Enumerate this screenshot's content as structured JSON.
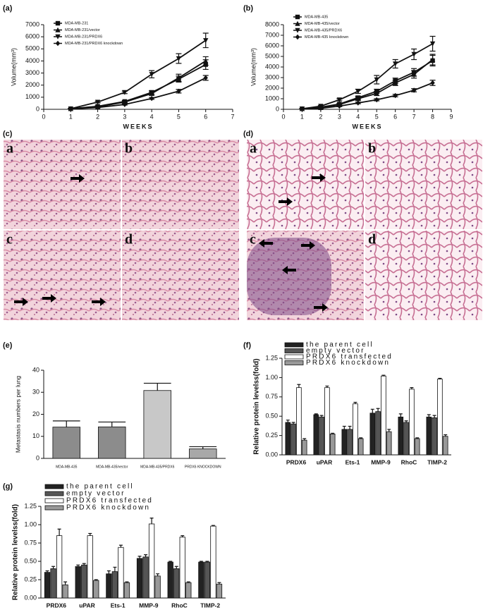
{
  "chart_data": [
    {
      "type": "line",
      "label": "(a)",
      "xlabel": "WEEKS",
      "ylabel": "Volume(mm³)",
      "x": [
        1,
        2,
        3,
        4,
        5,
        6
      ],
      "xlim": [
        0,
        7
      ],
      "xticks": [
        0,
        1,
        2,
        3,
        4,
        5,
        6,
        7
      ],
      "ylim": [
        0,
        7000
      ],
      "yticks": [
        0,
        1000,
        2000,
        3000,
        4000,
        5000,
        6000,
        7000
      ],
      "series": [
        {
          "name": "MDA-MB-231",
          "color": "#111111",
          "marker": "square",
          "values": [
            50,
            250,
            650,
            1400,
            2500,
            3700
          ],
          "errors": [
            20,
            50,
            80,
            150,
            250,
            400
          ]
        },
        {
          "name": "MDA-MB-231/vector",
          "color": "#111111",
          "marker": "triangle",
          "values": [
            50,
            200,
            600,
            1300,
            2600,
            4000
          ],
          "errors": [
            20,
            50,
            80,
            150,
            300,
            350
          ]
        },
        {
          "name": "MDA-MB-231/PRDX6",
          "color": "#111111",
          "marker": "down",
          "values": [
            50,
            600,
            1400,
            2900,
            4200,
            5700
          ],
          "errors": [
            20,
            60,
            100,
            300,
            400,
            600
          ]
        },
        {
          "name": "MDA-MB-231/PRDX6 knockdown",
          "color": "#111111",
          "marker": "diamond",
          "values": [
            30,
            150,
            400,
            900,
            1500,
            2600
          ],
          "errors": [
            10,
            30,
            50,
            80,
            150,
            200
          ]
        }
      ]
    },
    {
      "type": "line",
      "label": "(b)",
      "xlabel": "WEEKS",
      "ylabel": "Volume(mm³)",
      "x": [
        1,
        2,
        3,
        4,
        5,
        6,
        7,
        8
      ],
      "xlim": [
        0,
        9
      ],
      "xticks": [
        0,
        1,
        2,
        3,
        4,
        5,
        6,
        7,
        8,
        9
      ],
      "ylim": [
        0,
        8000
      ],
      "yticks": [
        0,
        1000,
        2000,
        3000,
        4000,
        5000,
        6000,
        7000,
        8000
      ],
      "series": [
        {
          "name": "MDA-MB-435",
          "color": "#111111",
          "marker": "square",
          "values": [
            50,
            200,
            500,
            1100,
            1700,
            2700,
            3500,
            4600
          ],
          "errors": [
            20,
            40,
            80,
            150,
            200,
            250,
            350,
            500
          ]
        },
        {
          "name": "MDA-MB-435/vector",
          "color": "#111111",
          "marker": "triangle",
          "values": [
            50,
            150,
            450,
            1000,
            1500,
            2500,
            3300,
            4700
          ],
          "errors": [
            20,
            40,
            80,
            150,
            200,
            250,
            350,
            500
          ]
        },
        {
          "name": "MDA-MB-435/PRDX6",
          "color": "#111111",
          "marker": "down",
          "values": [
            50,
            300,
            900,
            1700,
            2800,
            4300,
            5200,
            6200
          ],
          "errors": [
            20,
            60,
            100,
            200,
            400,
            400,
            500,
            700
          ]
        },
        {
          "name": "MDA-MB-435 knockdown",
          "color": "#111111",
          "marker": "diamond",
          "values": [
            30,
            100,
            300,
            600,
            900,
            1300,
            1800,
            2500
          ],
          "errors": [
            10,
            30,
            50,
            80,
            100,
            120,
            150,
            250
          ]
        }
      ]
    },
    {
      "type": "bar",
      "label": "(e)",
      "ylabel": "Metastasis numbers per lung",
      "categories": [
        "MDA-MB-435",
        "MDA-MB-435/vector",
        "MDA-MB-435/PRDX6",
        "PRDX6 KNOCKDOWN"
      ],
      "values": [
        14.2,
        14.3,
        30.8,
        4.3
      ],
      "errors": [
        2.8,
        2.2,
        3.3,
        1.0
      ],
      "colors": [
        "#8c8c8c",
        "#8c8c8c",
        "#c8c8c8",
        "#a8a8a8"
      ],
      "ylim": [
        0,
        40
      ],
      "yticks": [
        0,
        10,
        20,
        30,
        40
      ]
    },
    {
      "type": "bar",
      "label": "(f)",
      "ylabel": "Relative protein levelss(fold)",
      "categories": [
        "PRDX6",
        "uPAR",
        "Ets-1",
        "MMP-9",
        "RhoC",
        "TIMP-2"
      ],
      "ylim": [
        0,
        1.25
      ],
      "yticks": [
        {
          "value": 0,
          "label": "0.00"
        },
        {
          "value": 0.25,
          "label": "0.25"
        },
        {
          "value": 0.5,
          "label": "0.50"
        },
        {
          "value": 0.75,
          "label": "0.75"
        },
        {
          "value": 1,
          "label": "1.00"
        },
        {
          "value": 1.25,
          "label": "1.25"
        }
      ],
      "series": [
        {
          "name": "the parent cell",
          "color": "#222222",
          "values": [
            0.42,
            0.52,
            0.33,
            0.54,
            0.49,
            0.49
          ],
          "errors": [
            0.03,
            0.01,
            0.04,
            0.05,
            0.04,
            0.03
          ]
        },
        {
          "name": "empty vector",
          "color": "#555555",
          "values": [
            0.4,
            0.49,
            0.33,
            0.56,
            0.42,
            0.48
          ],
          "errors": [
            0.02,
            0.02,
            0.04,
            0.04,
            0.02,
            0.03
          ]
        },
        {
          "name": "PRDX6 transfected",
          "color": "#ffffff",
          "values": [
            0.87,
            0.87,
            0.66,
            1.02,
            0.85,
            0.98
          ],
          "errors": [
            0.04,
            0.02,
            0.02,
            0.01,
            0.02,
            0.01
          ]
        },
        {
          "name": "PRDX6 knockdown",
          "color": "#999999",
          "values": [
            0.19,
            0.27,
            0.21,
            0.3,
            0.21,
            0.24
          ],
          "errors": [
            0.02,
            0.01,
            0.01,
            0.03,
            0.01,
            0.02
          ]
        }
      ]
    },
    {
      "type": "bar",
      "label": "(g)",
      "ylabel": "Relative protein levelss(fold)",
      "categories": [
        "PRDX6",
        "uPAR",
        "Ets-1",
        "MMP-9",
        "RhoC",
        "TIMP-2"
      ],
      "ylim": [
        0,
        1.25
      ],
      "yticks": [
        {
          "value": 0,
          "label": "0.00"
        },
        {
          "value": 0.25,
          "label": "0.25"
        },
        {
          "value": 0.5,
          "label": "0.50"
        },
        {
          "value": 0.75,
          "label": "0.75"
        },
        {
          "value": 1,
          "label": "1.00"
        },
        {
          "value": 1.25,
          "label": "1.25"
        }
      ],
      "series": [
        {
          "name": "the parent cell",
          "color": "#222222",
          "values": [
            0.35,
            0.43,
            0.33,
            0.54,
            0.49,
            0.49
          ],
          "errors": [
            0.02,
            0.02,
            0.04,
            0.03,
            0.01,
            0.01
          ]
        },
        {
          "name": "empty vector",
          "color": "#555555",
          "values": [
            0.4,
            0.45,
            0.36,
            0.56,
            0.4,
            0.49
          ],
          "errors": [
            0.03,
            0.02,
            0.06,
            0.03,
            0.03,
            0.01
          ]
        },
        {
          "name": "PRDX6 transfected",
          "color": "#ffffff",
          "values": [
            0.85,
            0.85,
            0.69,
            1.01,
            0.83,
            0.98
          ],
          "errors": [
            0.09,
            0.03,
            0.03,
            0.08,
            0.02,
            0.01
          ]
        },
        {
          "name": "PRDX6 knockdown",
          "color": "#999999",
          "values": [
            0.18,
            0.24,
            0.21,
            0.3,
            0.21,
            0.19
          ],
          "errors": [
            0.04,
            0.01,
            0.01,
            0.03,
            0.01,
            0.02
          ]
        }
      ]
    }
  ],
  "figures": [
    {
      "label": "(c)",
      "panels": [
        "a",
        "b",
        "c",
        "d"
      ]
    },
    {
      "label": "(d)",
      "panels": [
        "a",
        "b",
        "c",
        "d"
      ]
    }
  ]
}
